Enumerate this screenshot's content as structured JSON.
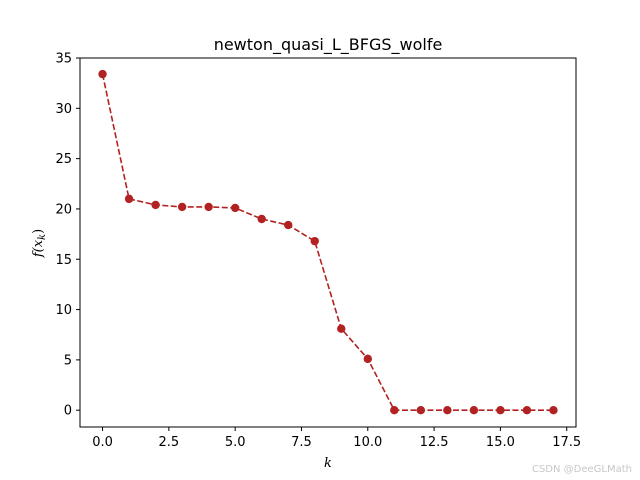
{
  "chart_data": {
    "type": "line",
    "title": "newton_quasi_L_BFGS_wolfe",
    "xlabel": "k",
    "ylabel_base": "f(x",
    "ylabel_sub": "k",
    "ylabel_end": ")",
    "xlim": [
      -0.85,
      17.85
    ],
    "ylim": [
      -1.67,
      35
    ],
    "x_ticks": [
      0,
      2.5,
      5,
      7.5,
      10,
      12.5,
      15,
      17.5
    ],
    "x_tick_labels": [
      "0.0",
      "2.5",
      "5.0",
      "7.5",
      "10.0",
      "12.5",
      "15.0",
      "17.5"
    ],
    "y_ticks": [
      0,
      5,
      10,
      15,
      20,
      25,
      30,
      35
    ],
    "y_tick_labels": [
      "0",
      "5",
      "10",
      "15",
      "20",
      "25",
      "30",
      "35"
    ],
    "grid": false,
    "series": [
      {
        "color": "#b22222",
        "line_style": "dashed",
        "marker": "circle",
        "x": [
          0,
          1,
          2,
          3,
          4,
          5,
          6,
          7,
          8,
          9,
          10,
          11,
          12,
          13,
          14,
          15,
          16,
          17
        ],
        "y": [
          33.4,
          21.0,
          20.4,
          20.2,
          20.2,
          20.1,
          19.0,
          18.4,
          16.8,
          8.1,
          5.1,
          0,
          0,
          0,
          0,
          0,
          0,
          0
        ]
      }
    ]
  },
  "watermark": "CSDN @DeeGLMath"
}
